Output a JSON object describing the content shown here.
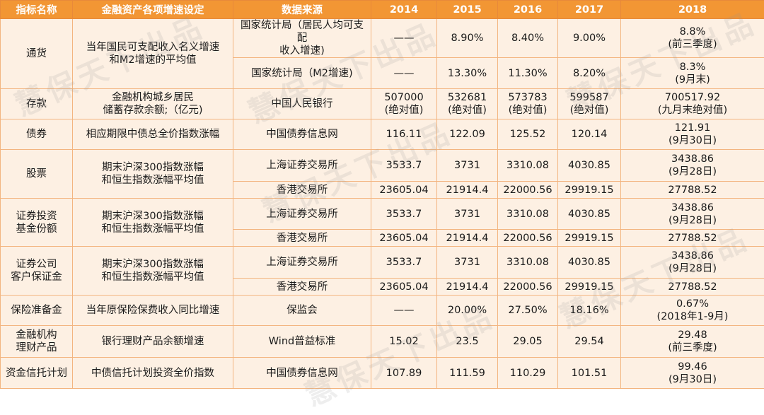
{
  "headers": [
    "指标名称",
    "金融资产各项增速设定",
    "数据来源",
    "2014",
    "2015",
    "2016",
    "2017",
    "2018"
  ],
  "watermark": "慧保天下出品",
  "groups": [
    {
      "indicator": [
        "通货"
      ],
      "setting": [
        "当年国民可支配收入名义增速",
        "和M2增速的平均值"
      ],
      "rows": [
        {
          "h": 52,
          "source": [
            "国家统计局（居民人均可支配",
            "收入增速)"
          ],
          "v2014": [
            "——"
          ],
          "v2015": [
            "8.90%"
          ],
          "v2016": [
            "8.40%"
          ],
          "v2017": [
            "9.00%"
          ],
          "v2018": [
            "8.8%",
            "(前三季度)"
          ]
        },
        {
          "h": 44,
          "source": [
            "国家统计局（M2增速)"
          ],
          "v2014": [
            "——"
          ],
          "v2015": [
            "13.30%"
          ],
          "v2016": [
            "11.30%"
          ],
          "v2017": [
            "8.20%"
          ],
          "v2018": [
            "8.3%",
            "(9月末)"
          ]
        }
      ]
    },
    {
      "indicator": [
        "存款"
      ],
      "setting": [
        "金融机构城乡居民",
        "储蓄存款余额;（亿元)"
      ],
      "rows": [
        {
          "h": 43,
          "source": [
            "中国人民银行"
          ],
          "v2014": [
            "507000",
            "(绝对值)"
          ],
          "v2015": [
            "532681",
            "(绝对值)"
          ],
          "v2016": [
            "573783",
            "(绝对值)"
          ],
          "v2017": [
            "599587",
            "(绝对值)"
          ],
          "v2018": [
            "700517.92",
            "(九月末绝对值)"
          ]
        }
      ]
    },
    {
      "indicator": [
        "债券"
      ],
      "setting": [
        "相应期限中债总全价指数涨幅"
      ],
      "rows": [
        {
          "h": 43,
          "source": [
            "中国债券信息网"
          ],
          "v2014": [
            "116.11"
          ],
          "v2015": [
            "122.09"
          ],
          "v2016": [
            "125.52"
          ],
          "v2017": [
            "120.14"
          ],
          "v2018": [
            "121.91",
            "(9月30日)"
          ]
        }
      ]
    },
    {
      "indicator": [
        "股票"
      ],
      "setting": [
        "期末沪深300指数涨幅",
        "和恒生指数涨幅平均值"
      ],
      "rows": [
        {
          "h": 45,
          "source": [
            "上海证券交易所"
          ],
          "v2014": [
            "3533.7"
          ],
          "v2015": [
            "3731"
          ],
          "v2016": [
            "3310.08"
          ],
          "v2017": [
            "4030.85"
          ],
          "v2018": [
            "3438.86",
            "(9月28日)"
          ]
        },
        {
          "h": 24,
          "source": [
            "香港交易所"
          ],
          "v2014": [
            "23605.04"
          ],
          "v2015": [
            "21914.4"
          ],
          "v2016": [
            "22000.56"
          ],
          "v2017": [
            "29919.15"
          ],
          "v2018": [
            "27788.52"
          ]
        }
      ]
    },
    {
      "indicator": [
        "证券投资",
        "基金份额"
      ],
      "setting": [
        "期末沪深300指数涨幅",
        "和恒生指数涨幅平均值"
      ],
      "rows": [
        {
          "h": 44,
          "source": [
            "上海证券交易所"
          ],
          "v2014": [
            "3533.7"
          ],
          "v2015": [
            "3731"
          ],
          "v2016": [
            "3310.08"
          ],
          "v2017": [
            "4030.85"
          ],
          "v2018": [
            "3438.86",
            "(9月28日)"
          ]
        },
        {
          "h": 24,
          "source": [
            "香港交易所"
          ],
          "v2014": [
            "23605.04"
          ],
          "v2015": [
            "21914.4"
          ],
          "v2016": [
            "22000.56"
          ],
          "v2017": [
            "29919.15"
          ],
          "v2018": [
            "27788.52"
          ]
        }
      ]
    },
    {
      "indicator": [
        "证券公司",
        "客户保证金"
      ],
      "setting": [
        "期末沪深300指数涨幅",
        "和恒生指数涨幅平均值"
      ],
      "rows": [
        {
          "h": 45,
          "source": [
            "上海证券交易所"
          ],
          "v2014": [
            "3533.7"
          ],
          "v2015": [
            "3731"
          ],
          "v2016": [
            "3310.08"
          ],
          "v2017": [
            "4030.85"
          ],
          "v2018": [
            "3438.86",
            "(9月28日)"
          ]
        },
        {
          "h": 24,
          "source": [
            "香港交易所"
          ],
          "v2014": [
            "23605.04"
          ],
          "v2015": [
            "21914.4"
          ],
          "v2016": [
            "22000.56"
          ],
          "v2017": [
            "29919.15"
          ],
          "v2018": [
            "27788.52"
          ]
        }
      ]
    },
    {
      "indicator": [
        "保险准备金"
      ],
      "setting": [
        "当年原保险保费收入同比增速"
      ],
      "rows": [
        {
          "h": 43,
          "source": [
            "保监会"
          ],
          "v2014": [
            "——"
          ],
          "v2015": [
            "20.00%"
          ],
          "v2016": [
            "27.50%"
          ],
          "v2017": [
            "18.16%"
          ],
          "v2018": [
            "0.67%",
            "(2018年1-9月)"
          ]
        }
      ]
    },
    {
      "indicator": [
        "金融机构",
        "理财产品"
      ],
      "setting": [
        "银行理财产品余额增速"
      ],
      "rows": [
        {
          "h": 45,
          "source": [
            "Wind普益标准"
          ],
          "v2014": [
            "15.02"
          ],
          "v2015": [
            "23.5"
          ],
          "v2016": [
            "29.05"
          ],
          "v2017": [
            "29.54"
          ],
          "v2018": [
            "29.48",
            "(前三季度)"
          ]
        }
      ]
    },
    {
      "indicator": [
        "资金信托计划"
      ],
      "setting": [
        "中债信托计划投资全价指数"
      ],
      "rows": [
        {
          "h": 44,
          "source": [
            "中国债券信息网"
          ],
          "v2014": [
            "107.89"
          ],
          "v2015": [
            "111.59"
          ],
          "v2016": [
            "110.29"
          ],
          "v2017": [
            "101.51"
          ],
          "v2018": [
            "99.46",
            "(9月30日)"
          ]
        }
      ]
    }
  ]
}
